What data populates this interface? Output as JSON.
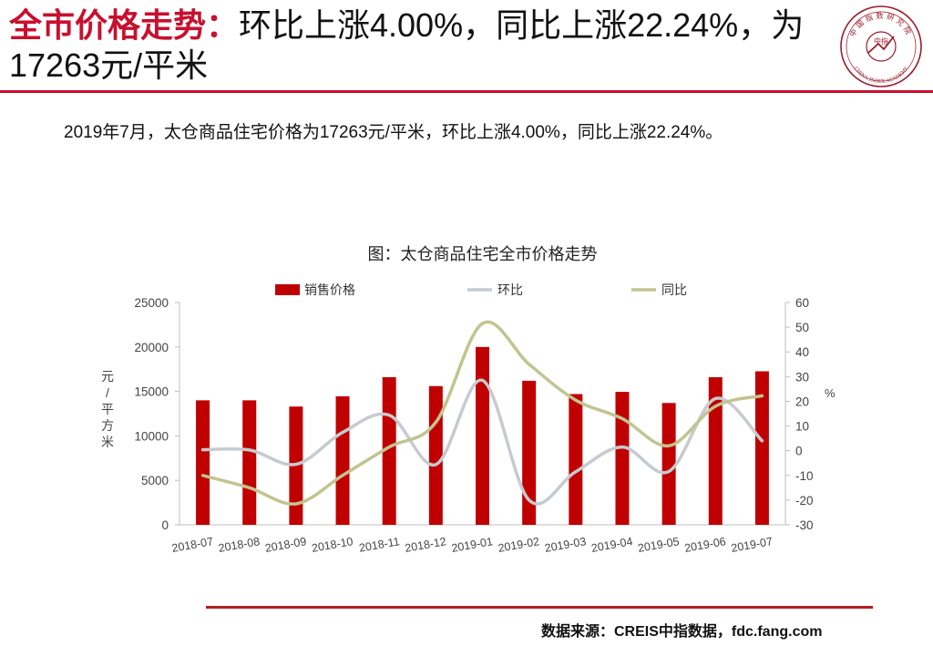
{
  "header": {
    "title_prefix": "全市价格走势：",
    "title_rest": "环比上涨4.00%，同比上涨22.24%，为17263元/平米"
  },
  "logo": {
    "icon": "china-index-academy-seal-icon",
    "top_text": "中国指数研究院",
    "bottom_text": "CHINA INDEX ACADEMY",
    "center_text": "中指"
  },
  "summary": "2019年7月，太仓商品住宅价格为17263元/平米，环比上涨4.00%，同比上涨22.24%。",
  "source": "数据来源：CREIS中指数据，fdc.fang.com",
  "colors": {
    "accent": "#c8102e",
    "bar": "#c00000",
    "mom": "#c5cbd0",
    "yoy": "#c2c48f"
  },
  "chart_data": {
    "type": "bar",
    "title": "图：太仓商品住宅全市价格走势",
    "categories": [
      "2018-07",
      "2018-08",
      "2018-09",
      "2018-10",
      "2018-11",
      "2018-12",
      "2019-01",
      "2019-02",
      "2019-03",
      "2019-04",
      "2019-05",
      "2019-06",
      "2019-07"
    ],
    "ylabel": "元/平方米",
    "y2label": "%",
    "ylim": [
      0,
      25000
    ],
    "y2lim": [
      -30,
      60
    ],
    "yticks": [
      "0",
      "5000",
      "10000",
      "15000",
      "20000",
      "25000"
    ],
    "y2ticks": [
      "-30",
      "-20",
      "-10",
      "0",
      "10",
      "20",
      "30",
      "40",
      "50",
      "60"
    ],
    "legend_position": "top",
    "series": [
      {
        "name": "销售价格",
        "type": "bar",
        "axis": "left",
        "values": [
          14000,
          14000,
          13300,
          14450,
          16600,
          15600,
          20000,
          16200,
          14700,
          14950,
          13700,
          16600,
          17263
        ]
      },
      {
        "name": "环比",
        "type": "line",
        "axis": "right",
        "values": [
          0.4,
          0.3,
          -5.5,
          7.4,
          14.4,
          -5.6,
          28.5,
          -20.0,
          -8.5,
          1.5,
          -8.4,
          21.1,
          4.0
        ]
      },
      {
        "name": "同比",
        "type": "line",
        "axis": "right",
        "values": [
          -10,
          -15,
          -21.5,
          -10,
          1.5,
          11.5,
          51.5,
          35,
          20.5,
          13,
          2,
          18,
          22.24
        ]
      }
    ]
  }
}
